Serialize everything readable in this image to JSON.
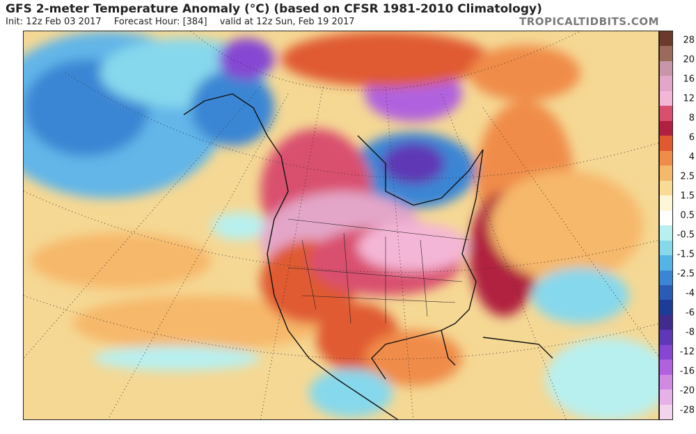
{
  "header": {
    "title": "GFS 2-meter Temperature Anomaly (°C) (based on CFSR 1981-2010 Climatology)",
    "init": "Init: 12z Feb 03 2017",
    "forecast_hour": "Forecast Hour: [384]",
    "valid": "valid at 12z Sun, Feb 19 2017",
    "brand": "TROPICALTIDBITS.COM"
  },
  "colorbar": {
    "labels": [
      "28",
      "20",
      "16",
      "12",
      "8",
      "6",
      "4",
      "2.5",
      "1.5",
      "0.5",
      "-0.5",
      "-1.5",
      "-2.5",
      "-4",
      "-6",
      "-8",
      "-12",
      "-16",
      "-20",
      "-28"
    ],
    "colors": [
      "#6b3a2a",
      "#9b6a5a",
      "#c896a8",
      "#e3a6c8",
      "#f4b6d6",
      "#d9506e",
      "#b02040",
      "#e05a30",
      "#f08c4a",
      "#f6b86a",
      "#f8dc96",
      "#fdf7d8",
      "#ffffff",
      "#b8f0f0",
      "#86d8ec",
      "#55b4e6",
      "#3a86d4",
      "#2a5cb6",
      "#1c3c96",
      "#402c8c",
      "#5e38b6",
      "#8646d2",
      "#b062de",
      "#d08ae4",
      "#e6b0e8",
      "#f2d4ec"
    ]
  }
}
